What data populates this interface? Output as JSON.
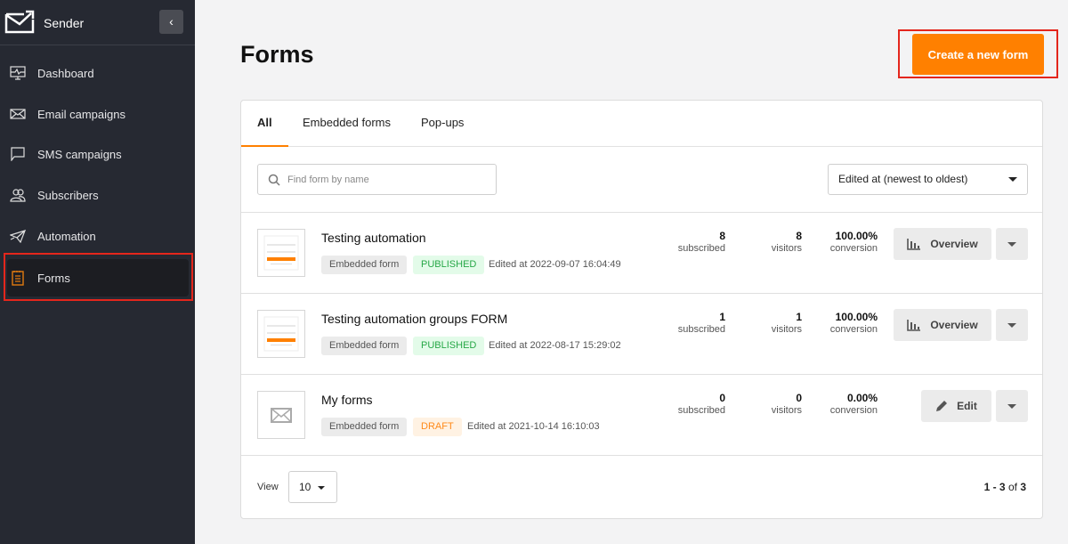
{
  "sidebar": {
    "brand": "Sender",
    "items": [
      {
        "label": "Dashboard",
        "icon": "dashboard-monitor-icon"
      },
      {
        "label": "Email campaigns",
        "icon": "envelope-icon"
      },
      {
        "label": "SMS campaigns",
        "icon": "chat-bubble-icon"
      },
      {
        "label": "Subscribers",
        "icon": "users-icon"
      },
      {
        "label": "Automation",
        "icon": "paper-plane-icon"
      },
      {
        "label": "Forms",
        "icon": "notepad-icon",
        "active": true
      }
    ]
  },
  "header": {
    "title": "Forms",
    "create_label": "Create a new form"
  },
  "tabs": [
    {
      "label": "All",
      "active": true
    },
    {
      "label": "Embedded forms"
    },
    {
      "label": "Pop-ups"
    }
  ],
  "search": {
    "placeholder": "Find form by name",
    "value": ""
  },
  "sort": {
    "selected": "Edited at (newest to oldest)"
  },
  "forms": [
    {
      "name": "Testing automation",
      "type": "Embedded form",
      "status": "PUBLISHED",
      "edited": "Edited at 2022-09-07 16:04:49",
      "subscribed": "8",
      "subscribed_label": "subscribed",
      "visitors": "8",
      "visitors_label": "visitors",
      "conversion": "100.00%",
      "conversion_label": "conversion",
      "action": "Overview"
    },
    {
      "name": "Testing automation groups FORM",
      "type": "Embedded form",
      "status": "PUBLISHED",
      "edited": "Edited at 2022-08-17 15:29:02",
      "subscribed": "1",
      "subscribed_label": "subscribed",
      "visitors": "1",
      "visitors_label": "visitors",
      "conversion": "100.00%",
      "conversion_label": "conversion",
      "action": "Overview"
    },
    {
      "name": "My forms",
      "type": "Embedded form",
      "status": "DRAFT",
      "edited": "Edited at 2021-10-14 16:10:03",
      "subscribed": "0",
      "subscribed_label": "subscribed",
      "visitors": "0",
      "visitors_label": "visitors",
      "conversion": "0.00%",
      "conversion_label": "conversion",
      "action": "Edit"
    }
  ],
  "footer": {
    "view_label": "View",
    "per_page": "10",
    "range": "1 - 3",
    "of": "of",
    "total": "3"
  },
  "colors": {
    "accent": "#ff8000",
    "sidebar": "#262932",
    "highlight": "#e4261c"
  }
}
